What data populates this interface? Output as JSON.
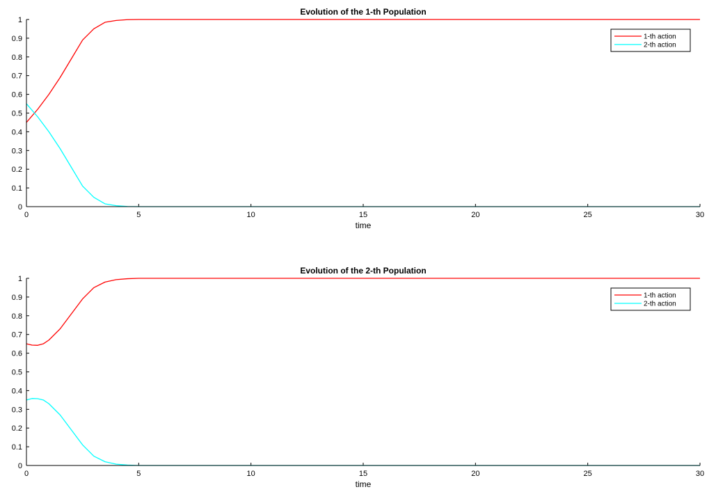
{
  "chart_data": [
    {
      "type": "line",
      "title": "Evolution of the 1-th Population",
      "xlabel": "time",
      "ylabel": "",
      "xlim": [
        0,
        30
      ],
      "ylim": [
        0,
        1
      ],
      "xticks": [
        "0",
        "5",
        "10",
        "15",
        "20",
        "25",
        "30"
      ],
      "yticks": [
        "0",
        "0.1",
        "0.2",
        "0.3",
        "0.4",
        "0.5",
        "0.6",
        "0.7",
        "0.8",
        "0.9",
        "1"
      ],
      "grid": false,
      "legend_position": "top-right",
      "x": [
        0,
        0.5,
        1,
        1.5,
        2,
        2.5,
        3,
        3.5,
        4,
        4.5,
        5,
        6,
        7,
        8,
        10,
        15,
        20,
        25,
        30
      ],
      "series": [
        {
          "name": "1-th action",
          "color": "#ff0000",
          "values": [
            0.45,
            0.52,
            0.6,
            0.69,
            0.79,
            0.89,
            0.95,
            0.985,
            0.995,
            0.999,
            1.0,
            1.0,
            1.0,
            1.0,
            1.0,
            1.0,
            1.0,
            1.0,
            1.0
          ]
        },
        {
          "name": "2-th action",
          "color": "#00ffff",
          "values": [
            0.55,
            0.48,
            0.4,
            0.31,
            0.21,
            0.11,
            0.05,
            0.015,
            0.005,
            0.001,
            0.0,
            0.0,
            0.0,
            0.0,
            0.0,
            0.0,
            0.0,
            0.0,
            0.0
          ]
        }
      ]
    },
    {
      "type": "line",
      "title": "Evolution of the 2-th Population",
      "xlabel": "time",
      "ylabel": "",
      "xlim": [
        0,
        30
      ],
      "ylim": [
        0,
        1
      ],
      "xticks": [
        "0",
        "5",
        "10",
        "15",
        "20",
        "25",
        "30"
      ],
      "yticks": [
        "0",
        "0.1",
        "0.2",
        "0.3",
        "0.4",
        "0.5",
        "0.6",
        "0.7",
        "0.8",
        "0.9",
        "1"
      ],
      "grid": false,
      "legend_position": "top-right",
      "x": [
        0,
        0.25,
        0.5,
        0.75,
        1,
        1.5,
        2,
        2.5,
        3,
        3.5,
        4,
        4.5,
        5,
        6,
        7,
        8,
        10,
        15,
        20,
        25,
        30
      ],
      "series": [
        {
          "name": "1-th action",
          "color": "#ff0000",
          "values": [
            0.65,
            0.643,
            0.642,
            0.65,
            0.67,
            0.73,
            0.81,
            0.89,
            0.95,
            0.98,
            0.993,
            0.998,
            1.0,
            1.0,
            1.0,
            1.0,
            1.0,
            1.0,
            1.0,
            1.0,
            1.0
          ]
        },
        {
          "name": "2-th action",
          "color": "#00ffff",
          "values": [
            0.35,
            0.358,
            0.357,
            0.35,
            0.33,
            0.27,
            0.19,
            0.11,
            0.05,
            0.02,
            0.007,
            0.002,
            0.0,
            0.0,
            0.0,
            0.0,
            0.0,
            0.0,
            0.0,
            0.0,
            0.0
          ]
        }
      ]
    }
  ]
}
